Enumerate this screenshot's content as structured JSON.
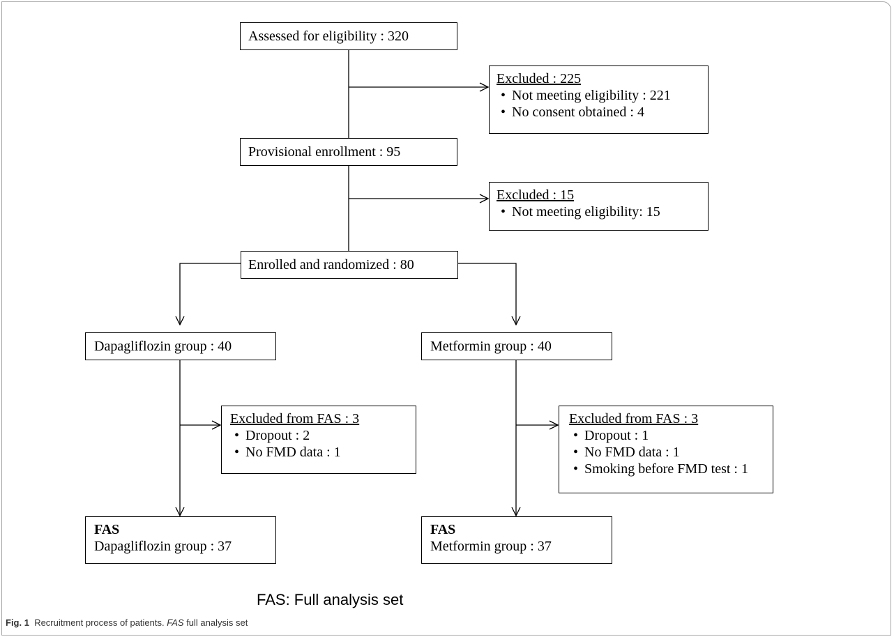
{
  "nodes": {
    "assessed": {
      "title": "Assessed for eligibility : 320"
    },
    "excluded1": {
      "title": "Excluded : 225",
      "items": [
        "Not meeting eligibility : 221",
        "No consent obtained : 4"
      ]
    },
    "provisional": {
      "title": "Provisional enrollment : 95"
    },
    "excluded2": {
      "title": "Excluded : 15",
      "items": [
        "Not meeting eligibility: 15"
      ]
    },
    "randomized": {
      "title": "Enrolled and randomized : 80"
    },
    "dapa_group": {
      "title": "Dapagliflozin group : 40"
    },
    "met_group": {
      "title": "Metformin group : 40"
    },
    "dapa_excluded": {
      "title": "Excluded from FAS : 3",
      "items": [
        "Dropout : 2",
        "No FMD data : 1"
      ]
    },
    "met_excluded": {
      "title": "Excluded from FAS : 3",
      "items": [
        "Dropout : 1",
        "No FMD data : 1",
        "Smoking before FMD test : 1"
      ]
    },
    "dapa_fas": {
      "heading": "FAS",
      "title": "Dapagliflozin group : 37"
    },
    "met_fas": {
      "heading": "FAS",
      "title": "Metformin group : 37"
    }
  },
  "footnote": "FAS: Full analysis set",
  "caption": {
    "label": "Fig. 1",
    "text_before": "Recruitment process of patients.",
    "abbr": "FAS",
    "text_after": "full analysis set"
  }
}
